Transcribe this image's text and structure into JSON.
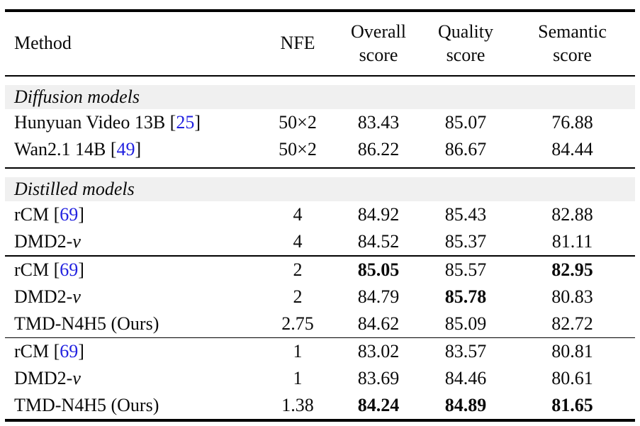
{
  "colors": {
    "citation_blue": "#2222e0",
    "section_band_gray": "#f0f0f0",
    "rule_black": "#000000",
    "text": "#0a0a0a"
  },
  "header": {
    "method": "Method",
    "nfe": "NFE",
    "overall": [
      "Overall",
      "score"
    ],
    "quality": [
      "Quality",
      "score"
    ],
    "semantic": [
      "Semantic",
      "score"
    ]
  },
  "sections": [
    {
      "title": "Diffusion models",
      "groups": [
        {
          "rows": [
            {
              "method": "Hunyuan Video 13B",
              "cite": "25",
              "nfe": "50×2",
              "overall": "83.43",
              "quality": "85.07",
              "semantic": "76.88",
              "bold": []
            },
            {
              "method": "Wan2.1 14B",
              "cite": "49",
              "nfe": "50×2",
              "overall": "86.22",
              "quality": "86.67",
              "semantic": "84.44",
              "bold": []
            }
          ]
        }
      ]
    },
    {
      "title": "Distilled models",
      "groups": [
        {
          "rows": [
            {
              "method": "rCM",
              "cite": "69",
              "nfe": "4",
              "overall": "84.92",
              "quality": "85.43",
              "semantic": "82.88",
              "bold": []
            },
            {
              "method": "DMD2-",
              "method_italic_suffix": "v",
              "nfe": "4",
              "overall": "84.52",
              "quality": "85.37",
              "semantic": "81.11",
              "bold": []
            }
          ]
        },
        {
          "rows": [
            {
              "method": "rCM",
              "cite": "69",
              "nfe": "2",
              "overall": "85.05",
              "quality": "85.57",
              "semantic": "82.95",
              "bold": [
                "overall",
                "semantic"
              ]
            },
            {
              "method": "DMD2-",
              "method_italic_suffix": "v",
              "nfe": "2",
              "overall": "84.79",
              "quality": "85.78",
              "semantic": "80.83",
              "bold": [
                "quality"
              ]
            },
            {
              "method": "TMD-N4H5 (Ours)",
              "nfe": "2.75",
              "overall": "84.62",
              "quality": "85.09",
              "semantic": "82.72",
              "bold": []
            }
          ]
        },
        {
          "rows": [
            {
              "method": "rCM",
              "cite": "69",
              "nfe": "1",
              "overall": "83.02",
              "quality": "83.57",
              "semantic": "80.81",
              "bold": []
            },
            {
              "method": "DMD2-",
              "method_italic_suffix": "v",
              "nfe": "1",
              "overall": "83.69",
              "quality": "84.46",
              "semantic": "80.61",
              "bold": []
            },
            {
              "method": "TMD-N4H5 (Ours)",
              "nfe": "1.38",
              "overall": "84.24",
              "quality": "84.89",
              "semantic": "81.65",
              "bold": [
                "overall",
                "quality",
                "semantic"
              ]
            }
          ]
        }
      ]
    }
  ]
}
